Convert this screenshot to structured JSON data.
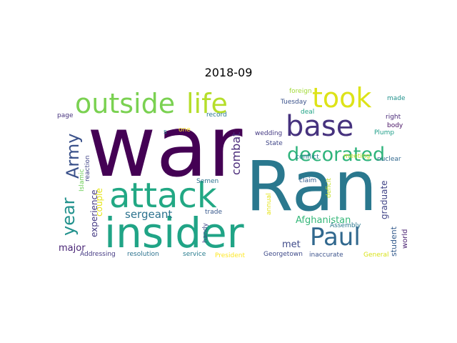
{
  "title": "2018-09",
  "words": [
    {
      "text": "war",
      "color": "#440154"
    },
    {
      "text": "Ran",
      "color": "#2a788e"
    },
    {
      "text": "insider",
      "color": "#20a486"
    },
    {
      "text": "attack",
      "color": "#22a884"
    },
    {
      "text": "outside",
      "color": "#7ad151"
    },
    {
      "text": "life",
      "color": "#b5de2b"
    },
    {
      "text": "took",
      "color": "#dde318"
    },
    {
      "text": "base",
      "color": "#46327e"
    },
    {
      "text": "Paul",
      "color": "#31688e"
    },
    {
      "text": "decorated",
      "color": "#2fb47c"
    },
    {
      "text": "Army",
      "color": "#3b528b"
    },
    {
      "text": "year",
      "color": "#21918c"
    },
    {
      "text": "combat",
      "color": "#482878"
    },
    {
      "text": "sergeant",
      "color": "#2c728e"
    },
    {
      "text": "Afghanistan",
      "color": "#35b779"
    },
    {
      "text": "graduate",
      "color": "#414487"
    },
    {
      "text": "experience",
      "color": "#443983"
    },
    {
      "text": "couple",
      "color": "#e5e419"
    },
    {
      "text": "major",
      "color": "#482475"
    },
    {
      "text": "met",
      "color": "#3e4a89"
    },
    {
      "text": "student",
      "color": "#365c8d"
    },
    {
      "text": "world",
      "color": "#481f70"
    },
    {
      "text": "reaction",
      "color": "#414487"
    },
    {
      "text": "Islamic",
      "color": "#6ece58"
    },
    {
      "text": "page",
      "color": "#46327e"
    },
    {
      "text": "one",
      "color": "#fde725"
    },
    {
      "text": "s",
      "color": "#25858e"
    },
    {
      "text": "record",
      "color": "#2a788e"
    },
    {
      "text": "foreign",
      "color": "#a2da37"
    },
    {
      "text": "Tuesday",
      "color": "#3b528b"
    },
    {
      "text": "deal",
      "color": "#20a486"
    },
    {
      "text": "made",
      "color": "#21918c"
    },
    {
      "text": "right",
      "color": "#482878"
    },
    {
      "text": "body",
      "color": "#471164"
    },
    {
      "text": "Plump",
      "color": "#1f9e89"
    },
    {
      "text": "wedding",
      "color": "#443983"
    },
    {
      "text": "State",
      "color": "#404688"
    },
    {
      "text": "conflict",
      "color": "#287c8e"
    },
    {
      "text": "meeting",
      "color": "#c0df25"
    },
    {
      "text": "nuclear",
      "color": "#31688e"
    },
    {
      "text": "Semen",
      "color": "#2c728e"
    },
    {
      "text": "claim",
      "color": "#365c8d"
    },
    {
      "text": "deficit",
      "color": "#c0df25"
    },
    {
      "text": "annual",
      "color": "#e5e419"
    },
    {
      "text": "Assembly",
      "color": "#2a788e"
    },
    {
      "text": "trade",
      "color": "#38598c"
    },
    {
      "text": "handy",
      "color": "#3f4788"
    },
    {
      "text": "Addressing",
      "color": "#443983"
    },
    {
      "text": "resolution",
      "color": "#2c728e"
    },
    {
      "text": "service",
      "color": "#287c8e"
    },
    {
      "text": "President",
      "color": "#fde725"
    },
    {
      "text": "Georgetown",
      "color": "#3e4a89"
    },
    {
      "text": "inaccurate",
      "color": "#3b528b"
    },
    {
      "text": "General",
      "color": "#d8e219"
    }
  ]
}
